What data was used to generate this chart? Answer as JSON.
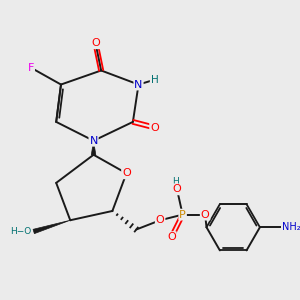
{
  "bg_color": "#ebebeb",
  "atom_colors": {
    "C": "#000000",
    "N": "#0000cc",
    "O": "#ff0000",
    "F": "#ee00ee",
    "P": "#cc8800",
    "H": "#007070"
  },
  "bond_color": "#1a1a1a",
  "figsize": [
    3.0,
    3.0
  ],
  "dpi": 100
}
